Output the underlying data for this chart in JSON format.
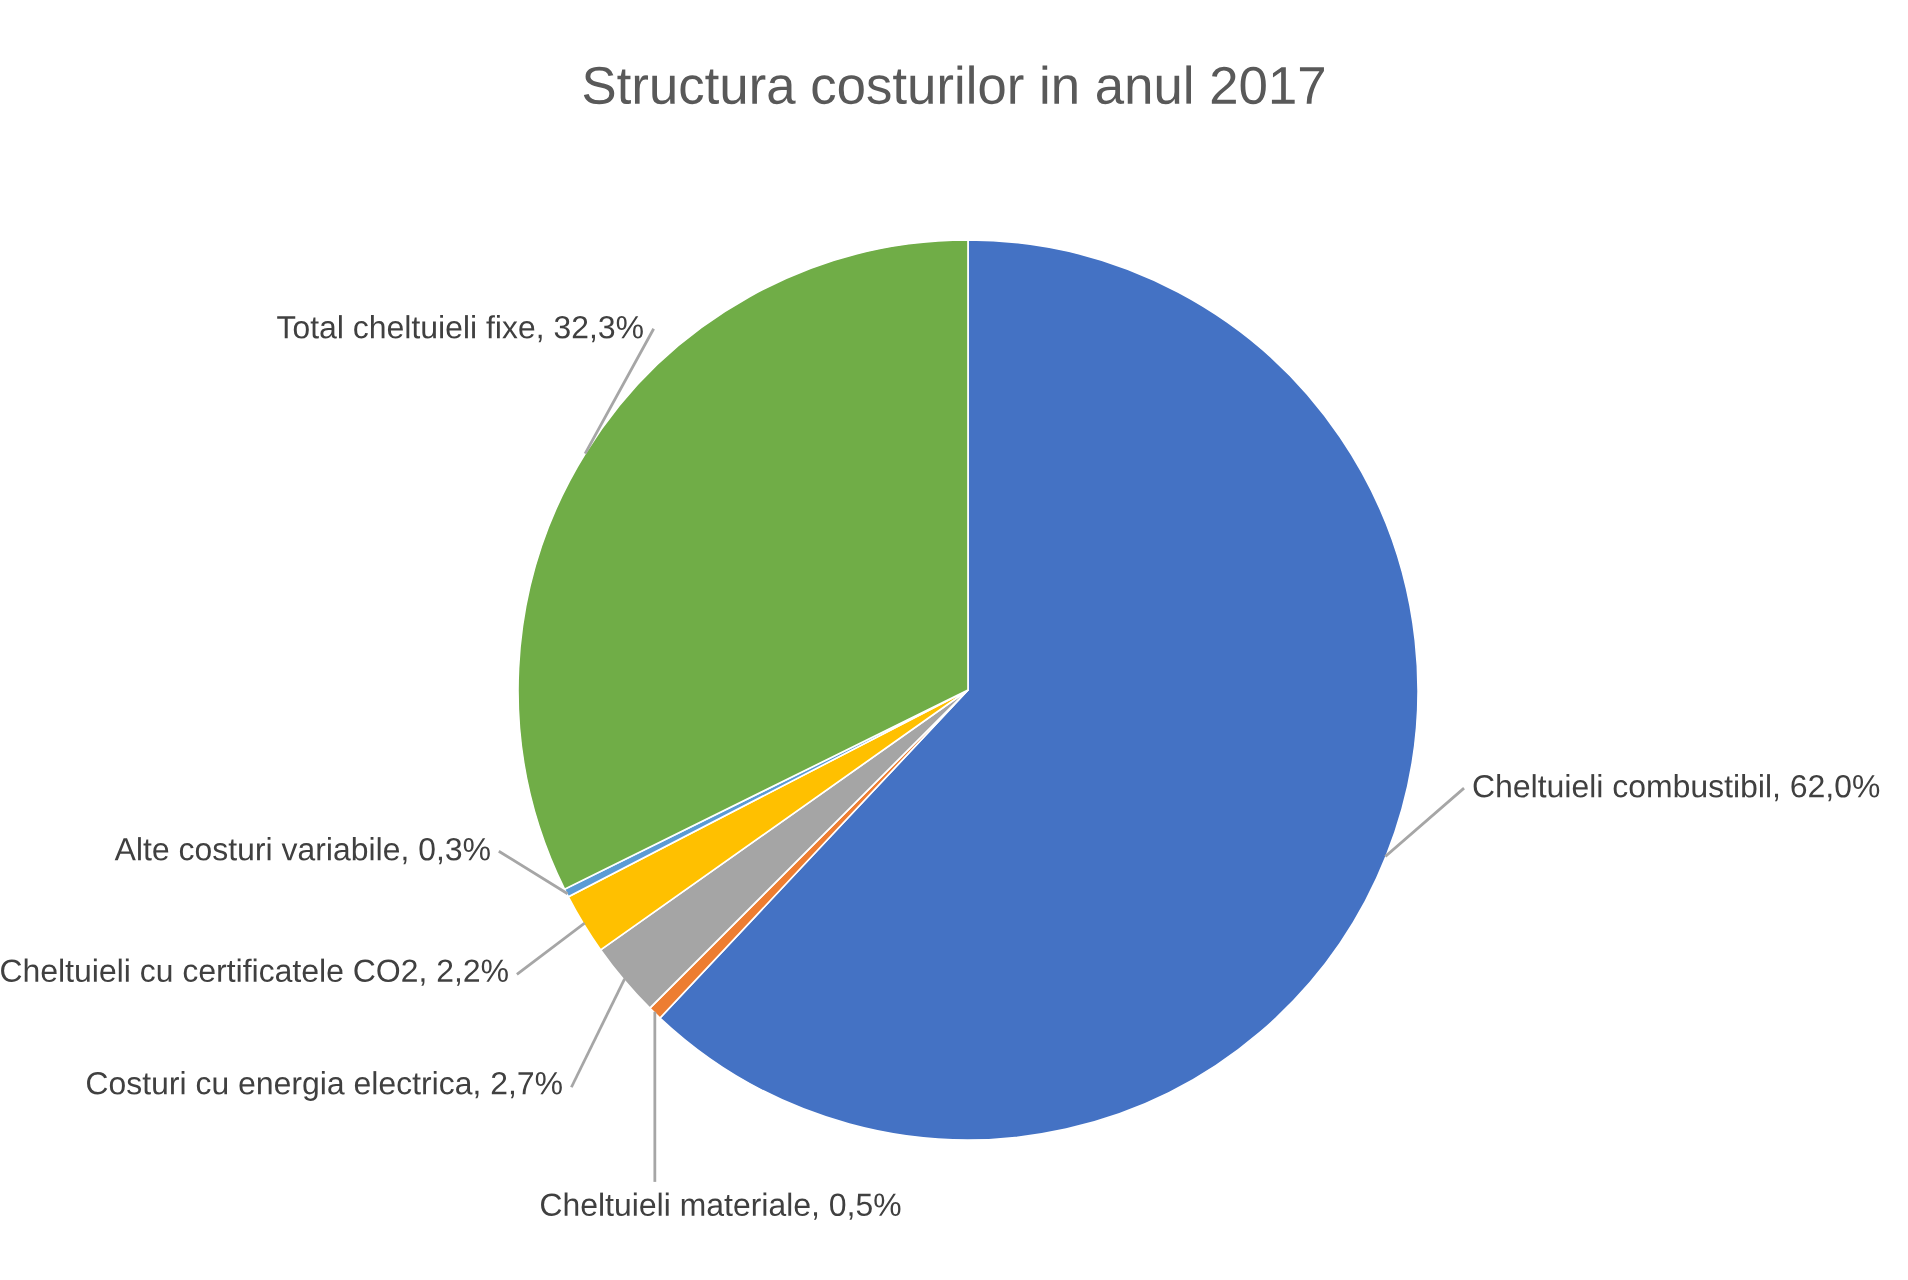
{
  "chart_data": {
    "type": "pie",
    "title": "Structura costurilor in anul 2017",
    "categories": [
      "Cheltuieli combustibil",
      "Cheltuieli materiale",
      "Costuri cu energia electrica",
      "Cheltuieli cu certificatele CO2",
      "Alte costuri variabile",
      "Total cheltuieli fixe"
    ],
    "values": [
      62.0,
      0.5,
      2.7,
      2.2,
      0.3,
      32.3
    ],
    "value_labels": [
      "62,0%",
      "0,5%",
      "2,7%",
      "2,2%",
      "0,3%",
      "32,3%"
    ],
    "colors": [
      "#4472c4",
      "#ed7d31",
      "#a5a5a5",
      "#ffc000",
      "#5b9bd5",
      "#70ad47"
    ],
    "legend": false
  }
}
